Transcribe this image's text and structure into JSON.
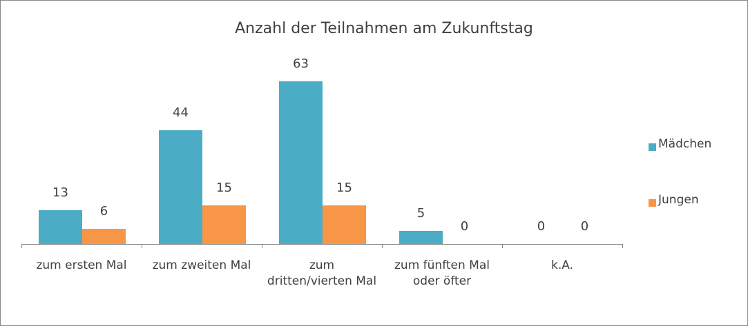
{
  "chart_data": {
    "type": "bar",
    "title": "Anzahl der Teilnahmen am Zukunftstag",
    "categories": [
      "zum ersten Mal",
      "zum zweiten Mal",
      "zum dritten/vierten Mal",
      "zum fünften Mal oder öfter",
      "k.A."
    ],
    "series": [
      {
        "name": "Mädchen",
        "color": "#4bacc6",
        "values": [
          13,
          44,
          63,
          5,
          0
        ]
      },
      {
        "name": "Jungen",
        "color": "#f79646",
        "values": [
          6,
          15,
          15,
          0,
          0
        ]
      }
    ],
    "legend": "right"
  }
}
